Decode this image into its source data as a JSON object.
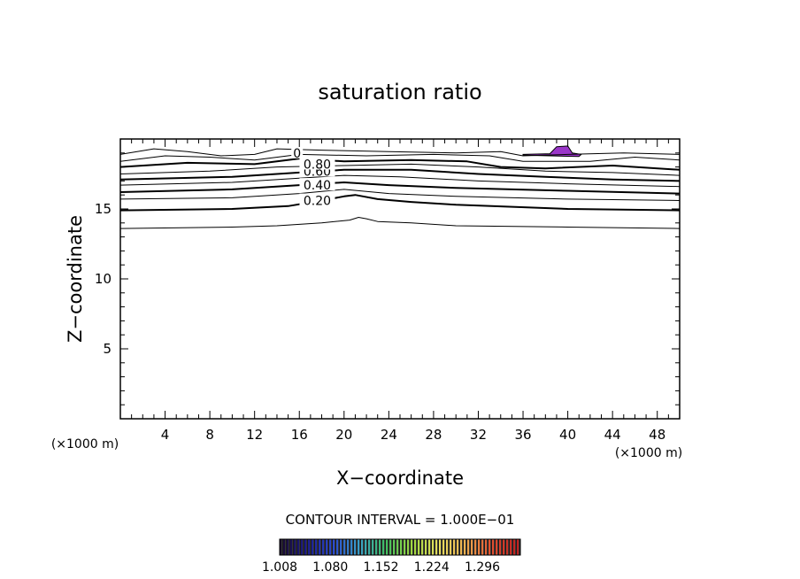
{
  "chart_data": {
    "type": "contour",
    "title": "saturation ratio",
    "xlabel": "X−coordinate",
    "ylabel": "Z−coordinate",
    "x_unit_left": "(×1000 m)",
    "x_unit_right": "(×1000 m)",
    "xlim": [
      0,
      50
    ],
    "ylim": [
      0,
      20
    ],
    "x_ticks": [
      4,
      8,
      12,
      16,
      20,
      24,
      28,
      32,
      36,
      40,
      44,
      48
    ],
    "y_ticks": [
      5,
      10,
      15
    ],
    "contour_interval_text": "CONTOUR INTERVAL = 1.000E−01",
    "contour_labels": [
      {
        "text": "0.20",
        "x": 17.6,
        "y": 15.6
      },
      {
        "text": "0.40",
        "x": 17.6,
        "y": 16.7
      },
      {
        "text": "0.60",
        "x": 17.6,
        "y": 17.7
      },
      {
        "text": "0.80",
        "x": 17.6,
        "y": 18.2
      },
      {
        "text": "0",
        "x": 15.8,
        "y": 19.0
      }
    ],
    "contours": [
      {
        "level": "0.10",
        "bold": false,
        "points": [
          [
            0,
            13.6
          ],
          [
            10,
            13.7
          ],
          [
            14,
            13.8
          ],
          [
            18,
            14.0
          ],
          [
            20.5,
            14.2
          ],
          [
            21.3,
            14.4
          ],
          [
            22,
            14.3
          ],
          [
            23,
            14.1
          ],
          [
            26,
            14.0
          ],
          [
            30,
            13.8
          ],
          [
            40,
            13.7
          ],
          [
            50,
            13.6
          ]
        ]
      },
      {
        "level": "0.20",
        "bold": true,
        "points": [
          [
            0,
            14.9
          ],
          [
            10,
            15.0
          ],
          [
            15,
            15.2
          ],
          [
            18,
            15.6
          ],
          [
            20,
            15.9
          ],
          [
            21,
            16.0
          ],
          [
            23,
            15.7
          ],
          [
            26,
            15.5
          ],
          [
            30,
            15.3
          ],
          [
            40,
            15.0
          ],
          [
            50,
            14.9
          ]
        ]
      },
      {
        "level": "0.30",
        "bold": false,
        "points": [
          [
            0,
            15.7
          ],
          [
            10,
            15.8
          ],
          [
            16,
            16.1
          ],
          [
            20,
            16.4
          ],
          [
            24,
            16.1
          ],
          [
            30,
            15.9
          ],
          [
            40,
            15.7
          ],
          [
            50,
            15.6
          ]
        ]
      },
      {
        "level": "0.40",
        "bold": true,
        "points": [
          [
            0,
            16.2
          ],
          [
            10,
            16.4
          ],
          [
            16,
            16.7
          ],
          [
            20,
            16.9
          ],
          [
            24,
            16.7
          ],
          [
            30,
            16.5
          ],
          [
            40,
            16.3
          ],
          [
            50,
            16.1
          ]
        ]
      },
      {
        "level": "0.50",
        "bold": false,
        "points": [
          [
            0,
            16.7
          ],
          [
            10,
            16.9
          ],
          [
            16,
            17.2
          ],
          [
            20,
            17.4
          ],
          [
            25,
            17.3
          ],
          [
            32,
            17.0
          ],
          [
            40,
            16.8
          ],
          [
            50,
            16.6
          ]
        ]
      },
      {
        "level": "0.60",
        "bold": true,
        "points": [
          [
            0,
            17.1
          ],
          [
            10,
            17.3
          ],
          [
            16,
            17.6
          ],
          [
            20,
            17.8
          ],
          [
            26,
            17.8
          ],
          [
            32,
            17.5
          ],
          [
            38,
            17.3
          ],
          [
            44,
            17.1
          ],
          [
            50,
            17.0
          ]
        ]
      },
      {
        "level": "0.70",
        "bold": false,
        "points": [
          [
            0,
            17.5
          ],
          [
            8,
            17.7
          ],
          [
            14,
            18.0
          ],
          [
            20,
            18.1
          ],
          [
            26,
            18.2
          ],
          [
            32,
            18.0
          ],
          [
            38,
            17.7
          ],
          [
            44,
            17.6
          ],
          [
            50,
            17.4
          ]
        ]
      },
      {
        "level": "0.80",
        "bold": true,
        "points": [
          [
            0,
            18.0
          ],
          [
            6,
            18.3
          ],
          [
            12,
            18.2
          ],
          [
            16,
            18.6
          ],
          [
            20,
            18.4
          ],
          [
            26,
            18.5
          ],
          [
            31,
            18.4
          ],
          [
            34,
            18.0
          ],
          [
            38,
            17.9
          ],
          [
            44,
            18.1
          ],
          [
            50,
            17.8
          ]
        ]
      },
      {
        "level": "0.90",
        "bold": false,
        "points": [
          [
            0,
            18.4
          ],
          [
            4,
            18.8
          ],
          [
            8,
            18.7
          ],
          [
            12,
            18.5
          ],
          [
            16,
            18.9
          ],
          [
            22,
            18.8
          ],
          [
            28,
            18.9
          ],
          [
            33,
            18.8
          ],
          [
            36,
            18.4
          ],
          [
            42,
            18.4
          ],
          [
            46,
            18.7
          ],
          [
            50,
            18.5
          ]
        ]
      },
      {
        "level": "0.95",
        "bold": false,
        "points": [
          [
            0,
            18.9
          ],
          [
            3,
            19.3
          ],
          [
            6,
            19.1
          ],
          [
            9,
            18.8
          ],
          [
            12,
            18.9
          ],
          [
            14,
            19.3
          ],
          [
            18,
            19.2
          ],
          [
            24,
            19.1
          ],
          [
            30,
            19.0
          ],
          [
            34,
            19.1
          ],
          [
            36,
            18.8
          ],
          [
            40,
            18.9
          ],
          [
            45,
            19.0
          ],
          [
            50,
            18.9
          ]
        ]
      }
    ],
    "colorbar": {
      "labels": [
        "1.008",
        "1.080",
        "1.152",
        "1.224",
        "1.296"
      ],
      "range": [
        1.008,
        1.35
      ],
      "colors": [
        "#1a0a2e",
        "#1a1a8c",
        "#2a4ad0",
        "#38a0c8",
        "#40c060",
        "#a0d840",
        "#e8e060",
        "#f0b050",
        "#e05030",
        "#c02020"
      ]
    },
    "filled_regions": [
      {
        "color": "#9a35c9",
        "points": [
          [
            36,
            18.9
          ],
          [
            38.4,
            18.95
          ],
          [
            39,
            19.45
          ],
          [
            40,
            19.5
          ],
          [
            40.4,
            19.0
          ],
          [
            41.2,
            18.9
          ],
          [
            41,
            18.75
          ],
          [
            36,
            18.85
          ]
        ]
      }
    ]
  },
  "colors": {
    "background": "#ffffff",
    "foreground": "#000000",
    "filled_region": "#9a35c9"
  }
}
